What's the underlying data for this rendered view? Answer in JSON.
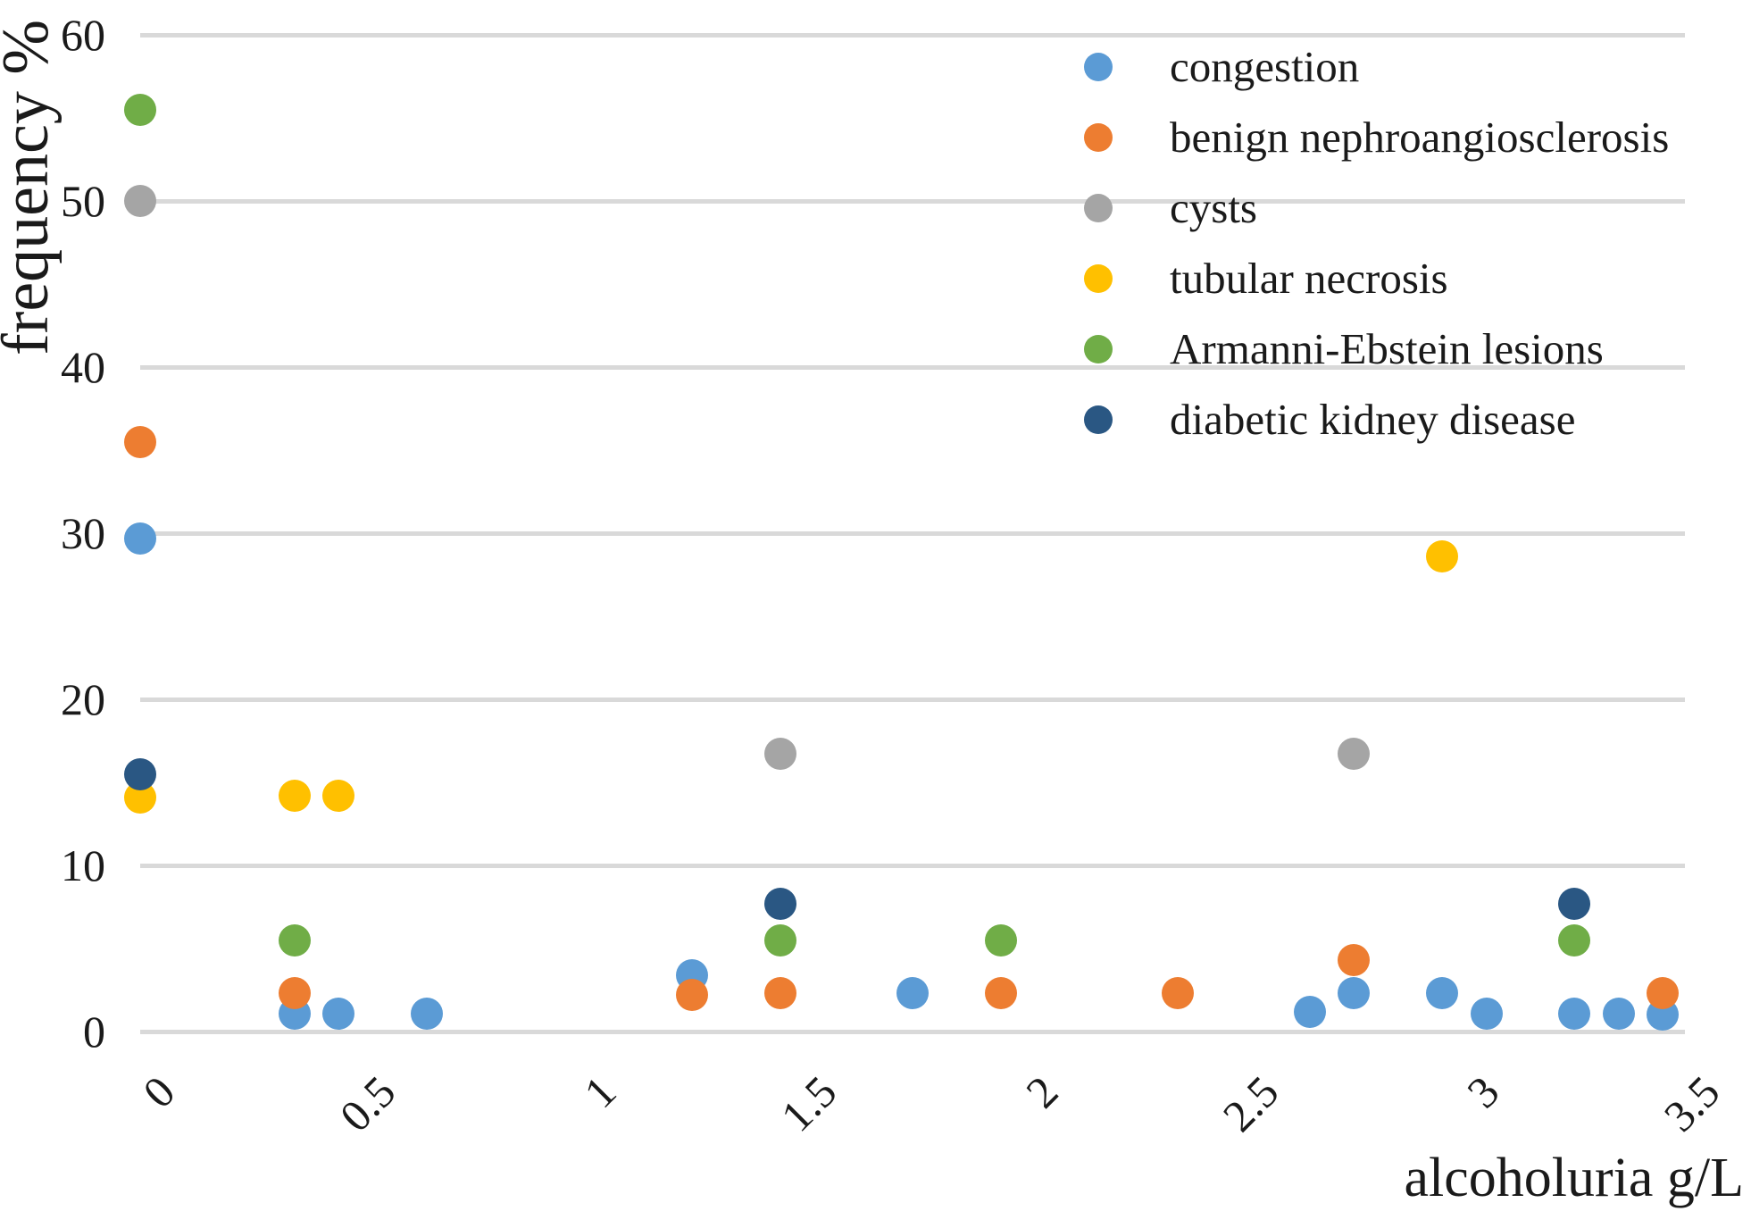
{
  "chart_data": {
    "type": "scatter",
    "title": "",
    "xlabel": "alcoholuria g/L",
    "ylabel": "frequency %",
    "xlim": [
      0,
      3.5
    ],
    "ylim": [
      0,
      60
    ],
    "grid": "horizontal",
    "gridline_color": "#d9d9d9",
    "legend_position": "top-right",
    "xticks": {
      "values": [
        0,
        0.5,
        1,
        1.5,
        2,
        2.5,
        3,
        3.5
      ],
      "labels": [
        "0",
        "0.5",
        "1",
        "1.5",
        "2",
        "2.5",
        "3",
        "3.5"
      ]
    },
    "yticks": {
      "values": [
        0,
        10,
        20,
        30,
        40,
        50,
        60
      ],
      "labels": [
        "0",
        "10",
        "20",
        "30",
        "40",
        "50",
        "60"
      ]
    },
    "series": [
      {
        "name": "congestion",
        "color": "#5B9BD5",
        "points": [
          [
            0,
            29.7
          ],
          [
            0.35,
            1.1
          ],
          [
            0.45,
            1.1
          ],
          [
            0.65,
            1.1
          ],
          [
            1.25,
            3.4
          ],
          [
            1.75,
            2.3
          ],
          [
            2.65,
            1.2
          ],
          [
            2.75,
            2.3
          ],
          [
            2.95,
            2.3
          ],
          [
            3.05,
            1.1
          ],
          [
            3.25,
            1.1
          ],
          [
            3.35,
            1.1
          ],
          [
            3.45,
            1.0
          ]
        ]
      },
      {
        "name": "benign nephroangiosclerosis",
        "color": "#ED7D31",
        "points": [
          [
            0,
            35.5
          ],
          [
            0.35,
            2.3
          ],
          [
            1.25,
            2.2
          ],
          [
            1.45,
            2.3
          ],
          [
            1.95,
            2.3
          ],
          [
            2.35,
            2.3
          ],
          [
            2.75,
            4.3
          ],
          [
            3.45,
            2.3
          ]
        ]
      },
      {
        "name": "cysts",
        "color": "#A5A5A5",
        "points": [
          [
            0,
            50
          ],
          [
            1.45,
            16.7
          ],
          [
            2.75,
            16.7
          ]
        ]
      },
      {
        "name": "tubular necrosis",
        "color": "#FFC000",
        "points": [
          [
            0,
            14.1
          ],
          [
            0.35,
            14.2
          ],
          [
            0.45,
            14.2
          ],
          [
            2.95,
            28.6
          ]
        ]
      },
      {
        "name": "Armanni-Ebstein lesions",
        "color": "#70AD47",
        "points": [
          [
            0,
            55.5
          ],
          [
            0.35,
            5.5
          ],
          [
            1.45,
            5.5
          ],
          [
            1.95,
            5.5
          ],
          [
            3.25,
            5.5
          ]
        ]
      },
      {
        "name": "diabetic kidney disease",
        "color": "#2A5783",
        "points": [
          [
            0,
            15.5
          ],
          [
            1.45,
            7.7
          ],
          [
            3.25,
            7.7
          ]
        ]
      }
    ]
  }
}
